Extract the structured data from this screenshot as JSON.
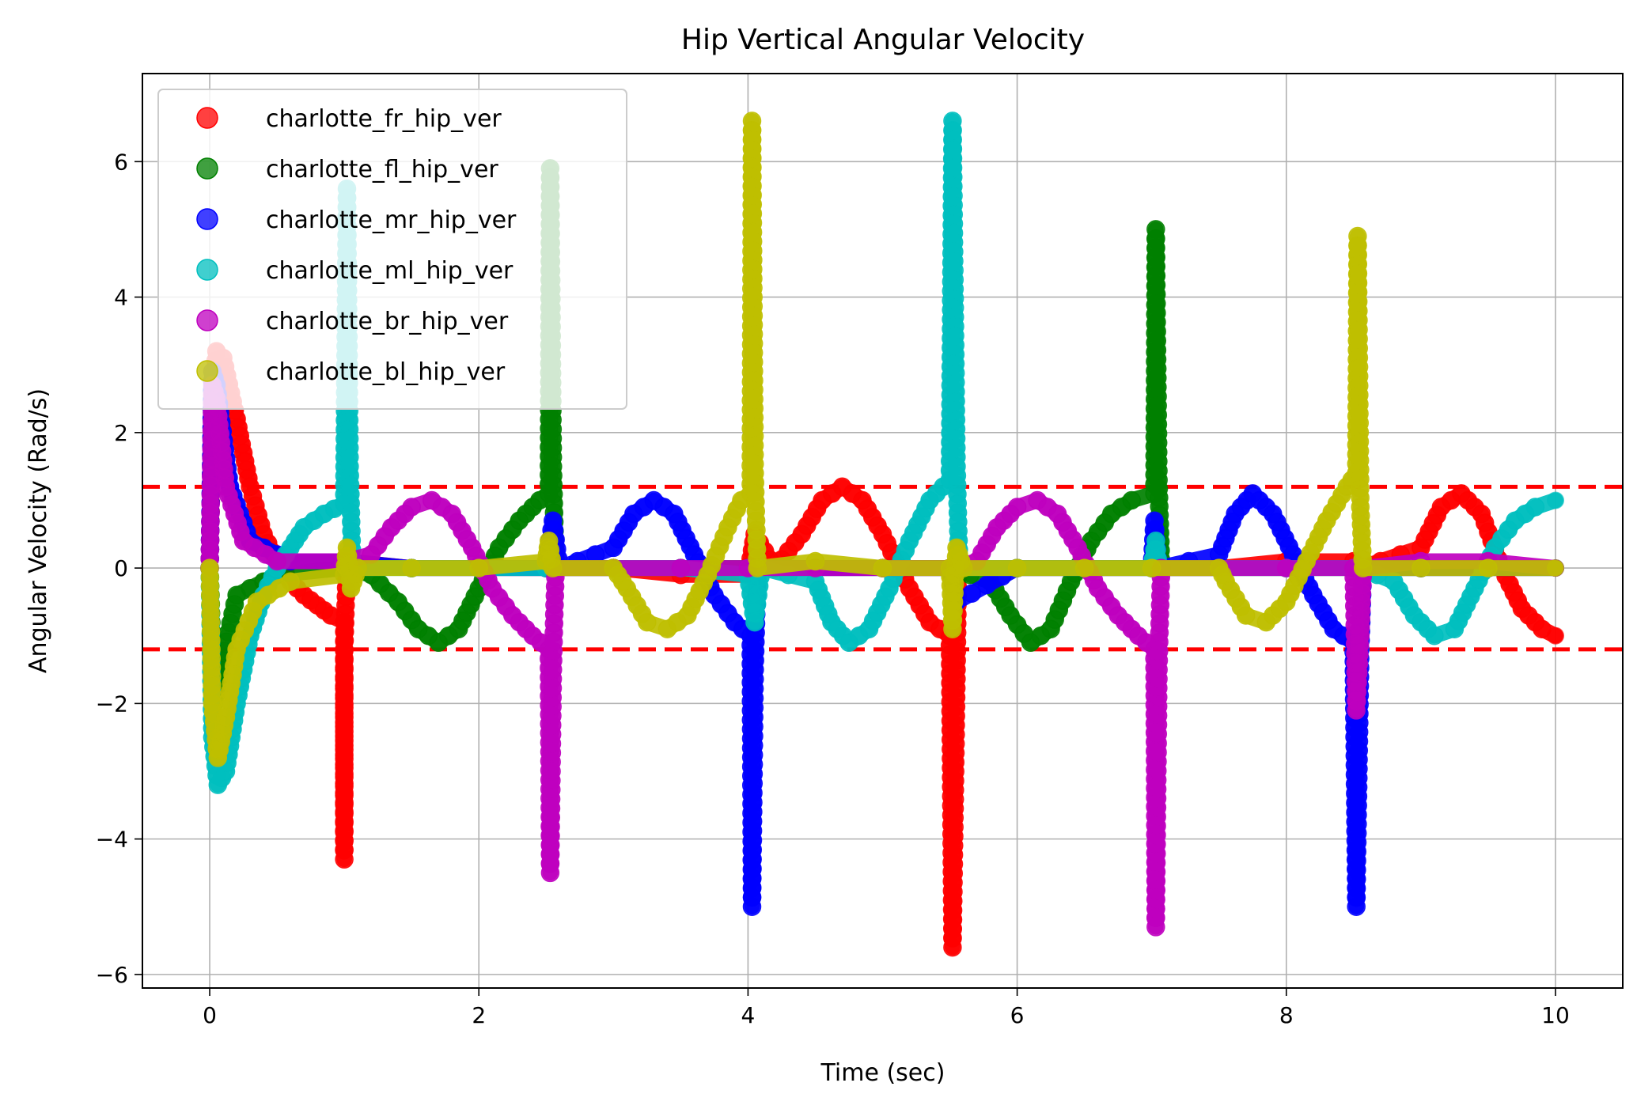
{
  "chart_data": {
    "type": "scatter",
    "title": "Hip Vertical Angular Velocity",
    "xlabel": "Time (sec)",
    "ylabel": "Angular Velocity (Rad/s)",
    "xlim": [
      -0.5,
      10.5
    ],
    "ylim": [
      -6.2,
      7.3
    ],
    "xticks": [
      0,
      2,
      4,
      6,
      8,
      10
    ],
    "xtick_labels": [
      "0",
      "2",
      "4",
      "6",
      "8",
      "10"
    ],
    "yticks": [
      -6,
      -4,
      -2,
      0,
      2,
      4,
      6
    ],
    "ytick_labels": [
      "−6",
      "−4",
      "−2",
      "0",
      "2",
      "4",
      "6"
    ],
    "grid": true,
    "legend_position": "top-left",
    "threshold_lines": [
      1.2,
      -1.2
    ],
    "threshold_color": "#ff0000",
    "series": [
      {
        "name": "charlotte_fr_hip_ver",
        "color": "#ff0000",
        "points": [
          [
            0,
            0
          ],
          [
            0.02,
            2.5
          ],
          [
            0.05,
            3.2
          ],
          [
            0.1,
            3.1
          ],
          [
            0.2,
            2.2
          ],
          [
            0.3,
            1.2
          ],
          [
            0.4,
            0.5
          ],
          [
            0.5,
            0.1
          ],
          [
            0.6,
            -0.2
          ],
          [
            0.7,
            -0.4
          ],
          [
            0.8,
            -0.55
          ],
          [
            0.9,
            -0.7
          ],
          [
            1.0,
            -0.8
          ],
          [
            1.0,
            -4.3
          ],
          [
            1.0,
            -1.2
          ],
          [
            1.02,
            0.1
          ],
          [
            1.5,
            0.0
          ],
          [
            2.0,
            0.0
          ],
          [
            2.5,
            0.0
          ],
          [
            3.0,
            0.0
          ],
          [
            3.5,
            -0.1
          ],
          [
            4.0,
            -0.1
          ],
          [
            4.05,
            0.5
          ],
          [
            4.2,
            0.0
          ],
          [
            4.4,
            0.5
          ],
          [
            4.55,
            1.0
          ],
          [
            4.7,
            1.2
          ],
          [
            4.85,
            1.0
          ],
          [
            5.0,
            0.5
          ],
          [
            5.2,
            -0.3
          ],
          [
            5.35,
            -0.8
          ],
          [
            5.5,
            -1.0
          ],
          [
            5.52,
            -5.6
          ],
          [
            5.55,
            -1.5
          ],
          [
            5.56,
            0.0
          ],
          [
            6.0,
            0.0
          ],
          [
            6.5,
            0.0
          ],
          [
            7.0,
            0.0
          ],
          [
            7.5,
            0.0
          ],
          [
            8.0,
            0.1
          ],
          [
            8.5,
            0.1
          ],
          [
            8.55,
            0.0
          ],
          [
            9.0,
            0.3
          ],
          [
            9.15,
            0.9
          ],
          [
            9.3,
            1.1
          ],
          [
            9.45,
            0.8
          ],
          [
            9.6,
            0.0
          ],
          [
            9.75,
            -0.6
          ],
          [
            9.9,
            -0.9
          ],
          [
            10.0,
            -1.0
          ]
        ]
      },
      {
        "name": "charlotte_fl_hip_ver",
        "color": "#008000",
        "points": [
          [
            0,
            0
          ],
          [
            0.03,
            -2.0
          ],
          [
            0.08,
            -1.5
          ],
          [
            0.2,
            -0.4
          ],
          [
            0.5,
            -0.1
          ],
          [
            1.0,
            0.0
          ],
          [
            1.2,
            -0.1
          ],
          [
            1.4,
            -0.5
          ],
          [
            1.55,
            -0.9
          ],
          [
            1.7,
            -1.1
          ],
          [
            1.85,
            -0.9
          ],
          [
            2.0,
            -0.3
          ],
          [
            2.15,
            0.3
          ],
          [
            2.3,
            0.7
          ],
          [
            2.45,
            1.0
          ],
          [
            2.52,
            1.1
          ],
          [
            2.53,
            5.9
          ],
          [
            2.55,
            1.5
          ],
          [
            2.57,
            0.0
          ],
          [
            3.0,
            0.0
          ],
          [
            3.5,
            0.0
          ],
          [
            4.0,
            0.0
          ],
          [
            4.5,
            0.0
          ],
          [
            5.0,
            0.0
          ],
          [
            5.5,
            0.0
          ],
          [
            5.8,
            -0.2
          ],
          [
            5.95,
            -0.7
          ],
          [
            6.1,
            -1.1
          ],
          [
            6.25,
            -0.9
          ],
          [
            6.4,
            -0.2
          ],
          [
            6.55,
            0.4
          ],
          [
            6.7,
            0.8
          ],
          [
            6.85,
            1.0
          ],
          [
            7.02,
            1.1
          ],
          [
            7.03,
            5.0
          ],
          [
            7.05,
            1.3
          ],
          [
            7.07,
            0.0
          ],
          [
            7.5,
            0.0
          ],
          [
            8.0,
            0.0
          ],
          [
            8.5,
            0.0
          ],
          [
            9.0,
            0.0
          ],
          [
            9.5,
            0.0
          ],
          [
            10.0,
            0.0
          ]
        ]
      },
      {
        "name": "charlotte_mr_hip_ver",
        "color": "#0000ff",
        "points": [
          [
            0,
            0
          ],
          [
            0.02,
            2.9
          ],
          [
            0.05,
            2.7
          ],
          [
            0.15,
            1.2
          ],
          [
            0.3,
            0.4
          ],
          [
            0.6,
            0.1
          ],
          [
            1.0,
            0.1
          ],
          [
            1.5,
            0.0
          ],
          [
            2.0,
            0.0
          ],
          [
            2.5,
            0.0
          ],
          [
            2.55,
            0.7
          ],
          [
            2.6,
            0.0
          ],
          [
            3.0,
            0.3
          ],
          [
            3.15,
            0.8
          ],
          [
            3.3,
            1.0
          ],
          [
            3.45,
            0.8
          ],
          [
            3.6,
            0.2
          ],
          [
            3.75,
            -0.4
          ],
          [
            3.9,
            -0.8
          ],
          [
            4.02,
            -1.0
          ],
          [
            4.03,
            -5.0
          ],
          [
            4.05,
            -1.5
          ],
          [
            4.07,
            0.0
          ],
          [
            4.5,
            0.0
          ],
          [
            5.0,
            0.0
          ],
          [
            5.5,
            0.0
          ],
          [
            5.55,
            -0.5
          ],
          [
            6.0,
            0.0
          ],
          [
            6.5,
            0.0
          ],
          [
            7.0,
            0.0
          ],
          [
            7.02,
            0.7
          ],
          [
            7.05,
            0.0
          ],
          [
            7.5,
            0.2
          ],
          [
            7.62,
            0.8
          ],
          [
            7.75,
            1.1
          ],
          [
            7.9,
            0.8
          ],
          [
            8.05,
            0.2
          ],
          [
            8.2,
            -0.4
          ],
          [
            8.35,
            -0.9
          ],
          [
            8.5,
            -1.1
          ],
          [
            8.52,
            -5.0
          ],
          [
            8.55,
            -1.2
          ],
          [
            8.57,
            0.0
          ],
          [
            9.0,
            0.0
          ],
          [
            9.5,
            0.0
          ],
          [
            10.0,
            0.0
          ]
        ]
      },
      {
        "name": "charlotte_ml_hip_ver",
        "color": "#00bfbf",
        "points": [
          [
            0,
            0
          ],
          [
            0.02,
            -2.5
          ],
          [
            0.06,
            -3.2
          ],
          [
            0.12,
            -3.0
          ],
          [
            0.2,
            -2.0
          ],
          [
            0.3,
            -1.0
          ],
          [
            0.4,
            -0.4
          ],
          [
            0.5,
            0.0
          ],
          [
            0.6,
            0.3
          ],
          [
            0.7,
            0.6
          ],
          [
            0.85,
            0.8
          ],
          [
            1.0,
            0.95
          ],
          [
            1.02,
            5.6
          ],
          [
            1.04,
            1.5
          ],
          [
            1.06,
            0.0
          ],
          [
            1.5,
            0.0
          ],
          [
            2.0,
            0.0
          ],
          [
            2.5,
            0.0
          ],
          [
            3.0,
            0.0
          ],
          [
            3.5,
            0.0
          ],
          [
            4.0,
            -0.1
          ],
          [
            4.05,
            -0.8
          ],
          [
            4.1,
            0.0
          ],
          [
            4.5,
            -0.2
          ],
          [
            4.62,
            -0.8
          ],
          [
            4.75,
            -1.1
          ],
          [
            4.9,
            -0.9
          ],
          [
            5.05,
            -0.3
          ],
          [
            5.2,
            0.4
          ],
          [
            5.35,
            1.0
          ],
          [
            5.5,
            1.3
          ],
          [
            5.52,
            6.6
          ],
          [
            5.55,
            1.5
          ],
          [
            5.57,
            0.0
          ],
          [
            6.0,
            0.0
          ],
          [
            6.5,
            0.0
          ],
          [
            7.0,
            0.0
          ],
          [
            7.03,
            0.4
          ],
          [
            7.05,
            0.0
          ],
          [
            7.5,
            0.0
          ],
          [
            8.0,
            0.0
          ],
          [
            8.5,
            0.0
          ],
          [
            8.55,
            0.0
          ],
          [
            8.8,
            -0.2
          ],
          [
            8.95,
            -0.7
          ],
          [
            9.1,
            -1.0
          ],
          [
            9.25,
            -0.9
          ],
          [
            9.4,
            -0.3
          ],
          [
            9.55,
            0.3
          ],
          [
            9.7,
            0.7
          ],
          [
            9.85,
            0.9
          ],
          [
            10.0,
            1.0
          ]
        ]
      },
      {
        "name": "charlotte_br_hip_ver",
        "color": "#bf00bf",
        "points": [
          [
            0,
            0
          ],
          [
            0.02,
            2.7
          ],
          [
            0.05,
            2.5
          ],
          [
            0.12,
            1.2
          ],
          [
            0.25,
            0.4
          ],
          [
            0.5,
            0.1
          ],
          [
            1.0,
            0.1
          ],
          [
            1.2,
            0.2
          ],
          [
            1.35,
            0.6
          ],
          [
            1.5,
            0.9
          ],
          [
            1.65,
            1.0
          ],
          [
            1.8,
            0.8
          ],
          [
            1.95,
            0.3
          ],
          [
            2.1,
            -0.3
          ],
          [
            2.25,
            -0.7
          ],
          [
            2.4,
            -1.0
          ],
          [
            2.52,
            -1.2
          ],
          [
            2.53,
            -4.5
          ],
          [
            2.55,
            -1.5
          ],
          [
            2.57,
            0.0
          ],
          [
            3.0,
            0.0
          ],
          [
            3.5,
            0.0
          ],
          [
            4.0,
            0.0
          ],
          [
            4.5,
            0.0
          ],
          [
            5.0,
            0.0
          ],
          [
            5.5,
            0.0
          ],
          [
            5.7,
            0.1
          ],
          [
            5.85,
            0.6
          ],
          [
            6.0,
            0.9
          ],
          [
            6.15,
            1.0
          ],
          [
            6.3,
            0.8
          ],
          [
            6.45,
            0.3
          ],
          [
            6.6,
            -0.3
          ],
          [
            6.75,
            -0.7
          ],
          [
            6.9,
            -1.0
          ],
          [
            7.02,
            -1.2
          ],
          [
            7.03,
            -5.3
          ],
          [
            7.05,
            -1.5
          ],
          [
            7.07,
            0.0
          ],
          [
            7.5,
            0.0
          ],
          [
            8.0,
            0.0
          ],
          [
            8.5,
            0.0
          ],
          [
            8.52,
            -2.1
          ],
          [
            8.55,
            -1.0
          ],
          [
            8.57,
            0.0
          ],
          [
            9.0,
            0.1
          ],
          [
            9.5,
            0.1
          ],
          [
            10.0,
            0.0
          ]
        ]
      },
      {
        "name": "charlotte_bl_hip_ver",
        "color": "#bfbf00",
        "points": [
          [
            0,
            0
          ],
          [
            0.02,
            -2.0
          ],
          [
            0.06,
            -2.8
          ],
          [
            0.12,
            -2.2
          ],
          [
            0.2,
            -1.2
          ],
          [
            0.35,
            -0.5
          ],
          [
            0.6,
            -0.2
          ],
          [
            1.0,
            -0.1
          ],
          [
            1.02,
            0.3
          ],
          [
            1.05,
            -0.3
          ],
          [
            1.1,
            0.0
          ],
          [
            1.5,
            0.0
          ],
          [
            2.0,
            0.0
          ],
          [
            2.5,
            0.1
          ],
          [
            2.52,
            0.4
          ],
          [
            2.55,
            0.0
          ],
          [
            3.0,
            0.0
          ],
          [
            3.1,
            -0.3
          ],
          [
            3.25,
            -0.8
          ],
          [
            3.4,
            -0.9
          ],
          [
            3.55,
            -0.7
          ],
          [
            3.7,
            -0.1
          ],
          [
            3.85,
            0.6
          ],
          [
            3.95,
            1.0
          ],
          [
            4.02,
            1.1
          ],
          [
            4.03,
            6.6
          ],
          [
            4.05,
            1.4
          ],
          [
            4.07,
            0.0
          ],
          [
            4.5,
            0.1
          ],
          [
            5.0,
            0.0
          ],
          [
            5.5,
            0.0
          ],
          [
            5.52,
            -0.9
          ],
          [
            5.55,
            0.3
          ],
          [
            5.6,
            0.0
          ],
          [
            6.0,
            0.0
          ],
          [
            6.5,
            0.0
          ],
          [
            7.0,
            0.0
          ],
          [
            7.5,
            0.0
          ],
          [
            7.55,
            -0.2
          ],
          [
            7.7,
            -0.7
          ],
          [
            7.85,
            -0.8
          ],
          [
            8.0,
            -0.5
          ],
          [
            8.15,
            0.1
          ],
          [
            8.3,
            0.7
          ],
          [
            8.45,
            1.2
          ],
          [
            8.52,
            1.4
          ],
          [
            8.53,
            4.9
          ],
          [
            8.55,
            0.9
          ],
          [
            8.57,
            0.0
          ],
          [
            9.0,
            0.0
          ],
          [
            9.5,
            0.0
          ],
          [
            10.0,
            0.0
          ]
        ]
      }
    ]
  }
}
